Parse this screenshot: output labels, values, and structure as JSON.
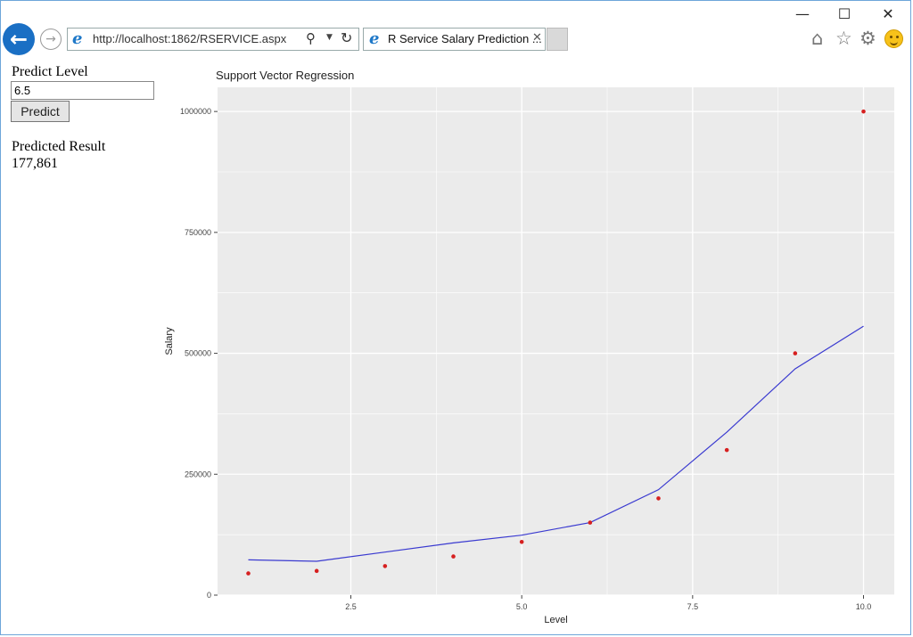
{
  "browser": {
    "url": "http://localhost:1862/RSERVICE.aspx",
    "tab_title": "R Service Salary Prediction ...",
    "window_controls": {
      "minimize": "—",
      "maximize": "☐",
      "close": "✕"
    },
    "icons": [
      "back-arrow-icon",
      "forward-arrow-icon",
      "ie-logo-icon",
      "search-icon",
      "refresh-icon",
      "close-icon",
      "home-icon",
      "favorites-star-icon",
      "settings-gear-icon",
      "feedback-smiley-icon"
    ]
  },
  "form": {
    "predict_level_label": "Predict Level",
    "level_value": "6.5",
    "predict_button": "Predict",
    "result_label": "Predicted Result",
    "result_value": "177,861"
  },
  "chart_data": {
    "type": "scatter",
    "title": "Support Vector Regression",
    "xlabel": "Level",
    "ylabel": "Salary",
    "xlim": [
      0.55,
      10.45
    ],
    "ylim": [
      0,
      1050000
    ],
    "xticks": [
      2.5,
      5.0,
      7.5,
      10.0
    ],
    "xtick_labels": [
      "2.5",
      "5.0",
      "7.5",
      "10.0"
    ],
    "yticks": [
      0,
      250000,
      500000,
      750000,
      1000000
    ],
    "ytick_labels": [
      "0",
      "250000",
      "500000",
      "750000",
      "1000000"
    ],
    "grid": true,
    "points": {
      "color": "#d62020",
      "x": [
        1,
        2,
        3,
        4,
        5,
        6,
        7,
        8,
        9,
        10
      ],
      "y": [
        45000,
        50000,
        60000,
        80000,
        110000,
        150000,
        200000,
        300000,
        500000,
        1000000
      ]
    },
    "line": {
      "color": "#3a3ad0",
      "x": [
        1,
        2,
        3,
        4,
        5,
        6,
        7,
        8,
        9,
        10
      ],
      "y": [
        73000,
        70000,
        89000,
        108000,
        124000,
        150000,
        218000,
        337000,
        468000,
        556000
      ]
    },
    "panel_color": "#ebebeb",
    "grid_color": "#ffffff"
  }
}
